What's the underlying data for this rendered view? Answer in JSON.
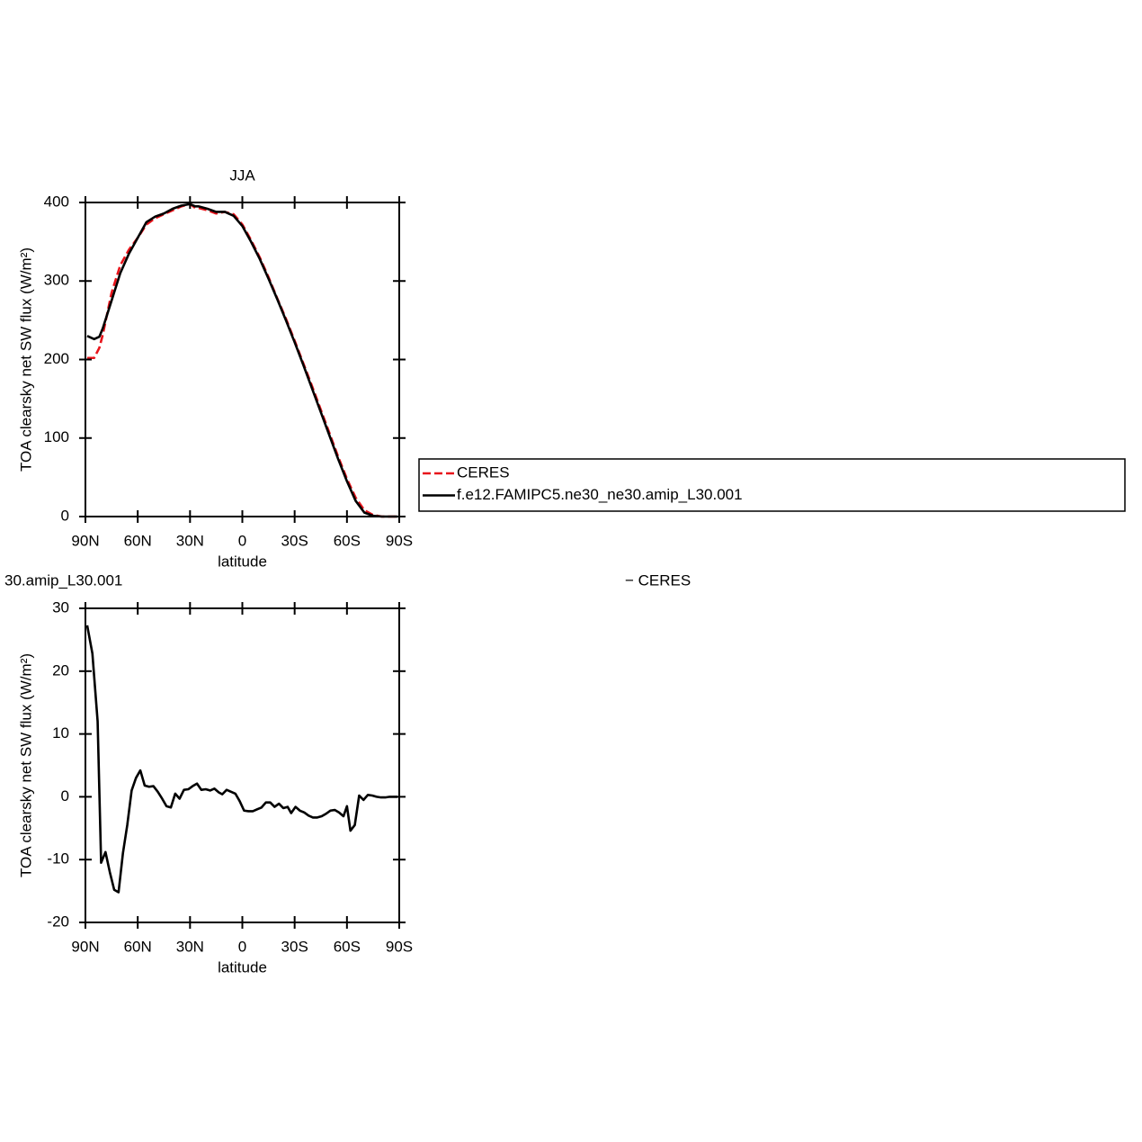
{
  "chart_data": [
    {
      "type": "line",
      "title": "JJA",
      "xlabel": "latitude",
      "ylabel": "TOA clearsky net SW flux (W/m²)",
      "xlim": [
        90,
        -90
      ],
      "ylim": [
        0,
        400
      ],
      "xticks": [
        {
          "value": 90,
          "label": "90N"
        },
        {
          "value": 60,
          "label": "60N"
        },
        {
          "value": 30,
          "label": "30N"
        },
        0,
        {
          "value": -30,
          "label": "30S"
        },
        {
          "value": -60,
          "label": "60S"
        },
        {
          "value": -90,
          "label": "90S"
        }
      ],
      "yticks": [
        0,
        100,
        200,
        300,
        400
      ],
      "x": [
        89,
        85,
        82,
        80,
        75,
        70,
        65,
        60,
        55,
        50,
        45,
        40,
        35,
        30,
        27,
        25,
        20,
        15,
        10,
        5,
        0,
        -5,
        -10,
        -15,
        -20,
        -25,
        -30,
        -35,
        -40,
        -45,
        -50,
        -55,
        -60,
        -65,
        -70,
        -75,
        -80,
        -85,
        -89
      ],
      "series": [
        {
          "name": "CERES",
          "color": "#e8141b",
          "line_style": "dashed",
          "values": [
            202,
            202,
            215,
            232,
            285,
            320,
            340,
            355,
            372,
            380,
            385,
            390,
            395,
            398,
            393,
            393,
            390,
            386,
            388,
            385,
            372,
            352,
            330,
            305,
            278,
            252,
            224,
            195,
            166,
            136,
            106,
            76,
            48,
            24,
            8,
            2,
            0,
            0,
            0
          ]
        },
        {
          "name": "f.e12.FAMIPC5.ne30_ne30.amip_L30.001",
          "color": "#000000",
          "line_style": "solid",
          "values": [
            230,
            226,
            229,
            240,
            275,
            310,
            335,
            355,
            375,
            382,
            386,
            392,
            396,
            398,
            395,
            395,
            392,
            388,
            388,
            383,
            370,
            350,
            328,
            303,
            277,
            250,
            222,
            193,
            163,
            133,
            103,
            73,
            45,
            20,
            5,
            1,
            0,
            0,
            0
          ]
        }
      ]
    },
    {
      "type": "line",
      "title": [
        "30.amip_L30.001",
        "−  CERES"
      ],
      "xlabel": "latitude",
      "ylabel": "TOA clearsky net SW flux (W/m²)",
      "xlim": [
        90,
        -90
      ],
      "ylim": [
        -20,
        30
      ],
      "xticks": [
        {
          "value": 90,
          "label": "90N"
        },
        {
          "value": 60,
          "label": "60N"
        },
        {
          "value": 30,
          "label": "30N"
        },
        0,
        {
          "value": -30,
          "label": "30S"
        },
        {
          "value": -60,
          "label": "60S"
        },
        {
          "value": -90,
          "label": "90S"
        }
      ],
      "yticks": [
        -20,
        -10,
        0,
        10,
        20,
        30
      ],
      "x": [
        89,
        86,
        83,
        81,
        78.5,
        76,
        73.5,
        71,
        68.5,
        66,
        63.5,
        61,
        58.5,
        56,
        53.5,
        51,
        48.5,
        46,
        43.5,
        41,
        38.5,
        36,
        33.5,
        31,
        28.5,
        26,
        23.5,
        21,
        18.5,
        16,
        13.5,
        11.5,
        9,
        6.5,
        4,
        1.5,
        -1,
        -3.5,
        -6,
        -8.5,
        -11,
        -13.5,
        -16,
        -18.5,
        -21,
        -23.5,
        -26,
        -28,
        -30.5,
        -33,
        -35.5,
        -38,
        -40.5,
        -43,
        -45.5,
        -48,
        -50.5,
        -53,
        -55.5,
        -58,
        -60,
        -62,
        -64.5,
        -67,
        -69.5,
        -72,
        -74.5,
        -77,
        -79.5,
        -82,
        -84.5,
        -87,
        -89
      ],
      "series": [
        {
          "color": "#000000",
          "line_style": "solid",
          "values": [
            27.3,
            22.8,
            12,
            -10.5,
            -8.8,
            -12,
            -14.8,
            -15.2,
            -9,
            -4.5,
            1,
            3,
            4.2,
            1.8,
            1.6,
            1.7,
            0.8,
            -0.3,
            -1.5,
            -1.7,
            0.5,
            -0.3,
            1.1,
            1.2,
            1.7,
            2.1,
            1.1,
            1.2,
            1.0,
            1.3,
            0.7,
            0.4,
            1.1,
            0.8,
            0.5,
            -0.7,
            -2.2,
            -2.3,
            -2.3,
            -2.0,
            -1.7,
            -0.9,
            -0.9,
            -1.6,
            -1.1,
            -1.8,
            -1.6,
            -2.6,
            -1.6,
            -2.2,
            -2.5,
            -3.0,
            -3.3,
            -3.3,
            -3.1,
            -2.7,
            -2.2,
            -2.1,
            -2.5,
            -3.1,
            -1.5,
            -5.4,
            -4.5,
            0.2,
            -0.5,
            0.3,
            0.2,
            0.0,
            -0.1,
            -0.1,
            0,
            0,
            0
          ]
        }
      ]
    }
  ]
}
